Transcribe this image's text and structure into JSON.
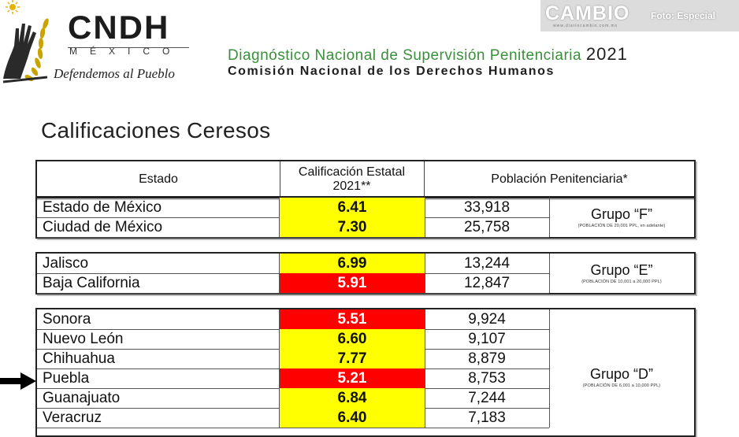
{
  "header": {
    "logo_text": "CNDH",
    "logo_country": "MÉXICO",
    "logo_motto": "Defendemos al Pueblo",
    "report_title": "Diagnóstico Nacional de Supervisión Penitenciaria",
    "report_year": "2021",
    "institution": "Comisión Nacional de los Derechos Humanos"
  },
  "watermark": {
    "brand": "CAMBIO",
    "brand_url": "www.diariocambio.com.mx",
    "credit": "Foto: Especial"
  },
  "section_title": "Calificaciones Ceresos",
  "table": {
    "headers": {
      "estado": "Estado",
      "calificacion": "Calificación Estatal 2021**",
      "poblacion": "Población Penitenciaria*"
    },
    "groups": [
      {
        "name": "Grupo “F”",
        "note": "(POBLACIÓN DE 20,001 PPL, en adelante)",
        "rows": [
          {
            "estado": "Estado de México",
            "calificacion": "6.41",
            "poblacion": "33,918",
            "color": "#ffff00"
          },
          {
            "estado": "Ciudad de México",
            "calificacion": "7.30",
            "poblacion": "25,758",
            "color": "#ffff00"
          }
        ]
      },
      {
        "name": "Grupo “E”",
        "note": "(POBLACIÓN DE 10,001 a 20,000 PPL)",
        "rows": [
          {
            "estado": "Jalisco",
            "calificacion": "6.99",
            "poblacion": "13,244",
            "color": "#ffff00"
          },
          {
            "estado": "Baja California",
            "calificacion": "5.91",
            "poblacion": "12,847",
            "color": "#ff0000"
          }
        ]
      },
      {
        "name": "Grupo “D”",
        "note": "(POBLACIÓN DE 6,001 a 10,000 PPL)",
        "rows": [
          {
            "estado": "Sonora",
            "calificacion": "5.51",
            "poblacion": "9,924",
            "color": "#ff0000"
          },
          {
            "estado": "Nuevo León",
            "calificacion": "6.60",
            "poblacion": "9,107",
            "color": "#ffff00"
          },
          {
            "estado": "Chihuahua",
            "calificacion": "7.77",
            "poblacion": "8,879",
            "color": "#ffff00"
          },
          {
            "estado": "Puebla",
            "calificacion": "5.21",
            "poblacion": "8,753",
            "color": "#ff0000"
          },
          {
            "estado": "Guanajuato",
            "calificacion": "6.84",
            "poblacion": "7,244",
            "color": "#ffff00"
          },
          {
            "estado": "Veracruz",
            "calificacion": "6.40",
            "poblacion": "7,183",
            "color": "#ffff00"
          }
        ]
      }
    ]
  },
  "colors": {
    "accent_green": "#3a8f3a",
    "score_red": "#ff0000",
    "score_yellow": "#ffff00"
  }
}
